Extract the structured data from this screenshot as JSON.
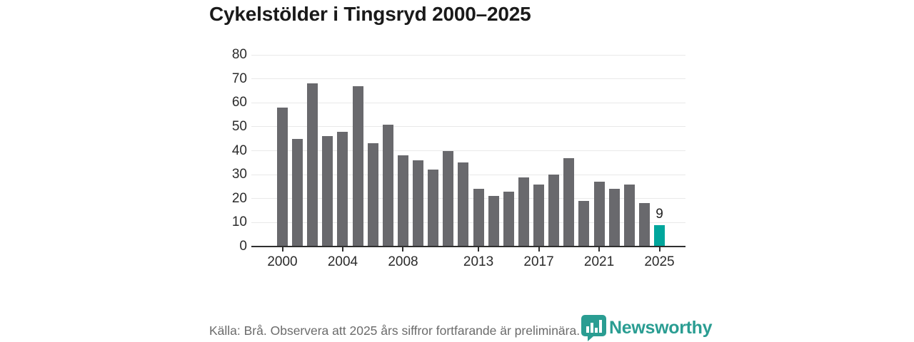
{
  "header": {
    "title": "Cykelstölder i Tingsryd 2000–2025"
  },
  "chart_data": {
    "type": "bar",
    "title": "Cykelstölder i Tingsryd 2000–2025",
    "x": [
      2000,
      2001,
      2002,
      2003,
      2004,
      2005,
      2006,
      2007,
      2008,
      2009,
      2010,
      2011,
      2012,
      2013,
      2014,
      2015,
      2016,
      2017,
      2018,
      2019,
      2020,
      2021,
      2022,
      2023,
      2024,
      2025
    ],
    "values": [
      58,
      45,
      68,
      46,
      48,
      67,
      43,
      51,
      38,
      36,
      32,
      40,
      35,
      24,
      21,
      23,
      29,
      26,
      30,
      37,
      19,
      27,
      24,
      26,
      18,
      9
    ],
    "ylim": [
      0,
      80
    ],
    "yticks": [
      0,
      10,
      20,
      30,
      40,
      50,
      60,
      70,
      80
    ],
    "x_tick_labels": [
      "2000",
      "2004",
      "2008",
      "2013",
      "2017",
      "2021",
      "2025"
    ],
    "grid": "horizontal",
    "legend": "none",
    "bar_color": "#69696d",
    "highlight_color": "#00a69c",
    "highlight_index": 25,
    "annotations": [
      {
        "year": 2025,
        "label": "9"
      }
    ]
  },
  "footer": {
    "source_note": "Källa: Brå. Observera att 2025 års siffror fortfarande är preliminära.",
    "brand": {
      "name": "Newsworthy",
      "color": "#2a9d92",
      "icon": "newsworthy-chart-bubble"
    }
  }
}
